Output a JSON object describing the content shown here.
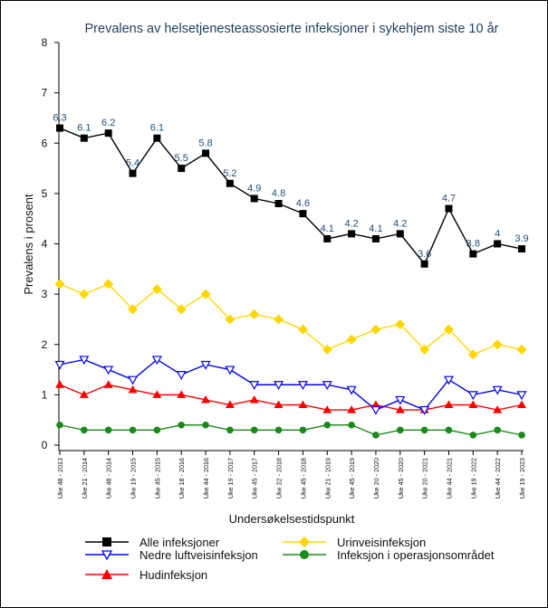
{
  "chart_data": {
    "type": "line",
    "title": "Prevalens av helsetjenesteassosierte infeksjoner i sykehjem siste 10 år",
    "xlabel": "Undersøkelsestidspunkt",
    "ylabel": "Prevalens i prosent",
    "ylim": [
      0,
      8
    ],
    "yticks": [
      0,
      1,
      2,
      3,
      4,
      5,
      6,
      7,
      8
    ],
    "grid": false,
    "legend_placement": "bottom",
    "categories": [
      "Uke 48 - 2013",
      "Uke 21 - 2014",
      "Uke 48 - 2014",
      "Uke 19 - 2015",
      "Uke 45 - 2015",
      "Uke 18 - 2016",
      "Uke 44 - 2016",
      "Uke 19 - 2017",
      "Uke 45 - 2017",
      "Uke 22 - 2018",
      "Uke 45 - 2018",
      "Uke 21 - 2019",
      "Uke 45 - 2019",
      "Uke 20 - 2020",
      "Uke 45 - 2020",
      "Uke 20 - 2021",
      "Uke 44 - 2021",
      "Uke 19 - 2022",
      "Uke 44 - 2022",
      "Uke 19 - 2023"
    ],
    "series": [
      {
        "name": "Alle infeksjoner",
        "color": "#000000",
        "marker": "square",
        "show_labels": true,
        "label_color": "#1f4e79",
        "values": [
          6.3,
          6.1,
          6.2,
          5.4,
          6.1,
          5.5,
          5.8,
          5.2,
          4.9,
          4.8,
          4.6,
          4.1,
          4.2,
          4.1,
          4.2,
          3.6,
          4.7,
          3.8,
          4,
          3.9
        ],
        "labels": [
          "6.3",
          "6.1",
          "6.2",
          "5.4",
          "6.1",
          "5.5",
          "5.8",
          "5.2",
          "4.9",
          "4.8",
          "4.6",
          "4.1",
          "4.2",
          "4.1",
          "4.2",
          "3.6",
          "4.7",
          "3.8",
          "4",
          "3.9"
        ]
      },
      {
        "name": "Urinveisinfeksjon",
        "color": "#ffd700",
        "marker": "diamond",
        "values": [
          3.2,
          3.0,
          3.2,
          2.7,
          3.1,
          2.7,
          3.0,
          2.5,
          2.6,
          2.5,
          2.3,
          1.9,
          2.1,
          2.3,
          2.4,
          1.9,
          2.3,
          1.8,
          2.0,
          1.9
        ]
      },
      {
        "name": "Nedre luftveisinfeksjon",
        "color": "#0000ff",
        "marker": "triangle-down-open",
        "values": [
          1.6,
          1.7,
          1.5,
          1.3,
          1.7,
          1.4,
          1.6,
          1.5,
          1.2,
          1.2,
          1.2,
          1.2,
          1.1,
          0.7,
          0.9,
          0.7,
          1.3,
          1.0,
          1.1,
          1.0
        ]
      },
      {
        "name": "Infeksjon i operasjonsområdet",
        "color": "#1a8a1a",
        "marker": "circle",
        "values": [
          0.4,
          0.3,
          0.3,
          0.3,
          0.3,
          0.4,
          0.4,
          0.3,
          0.3,
          0.3,
          0.3,
          0.4,
          0.4,
          0.2,
          0.3,
          0.3,
          0.3,
          0.2,
          0.3,
          0.2
        ]
      },
      {
        "name": "Hudinfeksjon",
        "color": "#ff0000",
        "marker": "triangle",
        "values": [
          1.2,
          1.0,
          1.2,
          1.1,
          1.0,
          1.0,
          0.9,
          0.8,
          0.9,
          0.8,
          0.8,
          0.7,
          0.7,
          0.8,
          0.7,
          0.7,
          0.8,
          0.8,
          0.7,
          0.8
        ]
      }
    ]
  }
}
